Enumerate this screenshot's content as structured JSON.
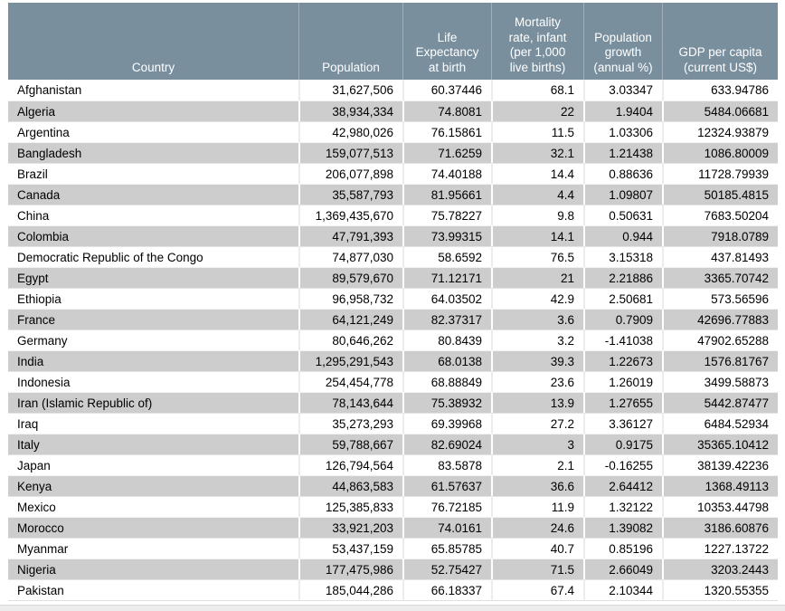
{
  "table": {
    "columns": [
      {
        "key": "country",
        "label": "Country"
      },
      {
        "key": "population",
        "label": "Population"
      },
      {
        "key": "life-expectancy",
        "label": "Life\nExpectancy\nat birth"
      },
      {
        "key": "mortality",
        "label": "Mortality\nrate, infant\n(per 1,000\nlive births)"
      },
      {
        "key": "pop-growth",
        "label": "Population\ngrowth\n(annual %)"
      },
      {
        "key": "gdp-per-capita",
        "label": "GDP per capita\n(current US$)"
      }
    ],
    "rows": [
      [
        "Afghanistan",
        "31,627,506",
        "60.37446",
        "68.1",
        "3.03347",
        "633.94786"
      ],
      [
        "Algeria",
        "38,934,334",
        "74.8081",
        "22",
        "1.9404",
        "5484.06681"
      ],
      [
        "Argentina",
        "42,980,026",
        "76.15861",
        "11.5",
        "1.03306",
        "12324.93879"
      ],
      [
        "Bangladesh",
        "159,077,513",
        "71.6259",
        "32.1",
        "1.21438",
        "1086.80009"
      ],
      [
        "Brazil",
        "206,077,898",
        "74.40188",
        "14.4",
        "0.88636",
        "11728.79939"
      ],
      [
        "Canada",
        "35,587,793",
        "81.95661",
        "4.4",
        "1.09807",
        "50185.4815"
      ],
      [
        "China",
        "1,369,435,670",
        "75.78227",
        "9.8",
        "0.50631",
        "7683.50204"
      ],
      [
        "Colombia",
        "47,791,393",
        "73.99315",
        "14.1",
        "0.944",
        "7918.0789"
      ],
      [
        "Democratic Republic of the Congo",
        "74,877,030",
        "58.6592",
        "76.5",
        "3.15318",
        "437.81493"
      ],
      [
        "Egypt",
        "89,579,670",
        "71.12171",
        "21",
        "2.21886",
        "3365.70742"
      ],
      [
        "Ethiopia",
        "96,958,732",
        "64.03502",
        "42.9",
        "2.50681",
        "573.56596"
      ],
      [
        "France",
        "64,121,249",
        "82.37317",
        "3.6",
        "0.7909",
        "42696.77883"
      ],
      [
        "Germany",
        "80,646,262",
        "80.8439",
        "3.2",
        "-1.41038",
        "47902.65288"
      ],
      [
        "India",
        "1,295,291,543",
        "68.0138",
        "39.3",
        "1.22673",
        "1576.81767"
      ],
      [
        "Indonesia",
        "254,454,778",
        "68.88849",
        "23.6",
        "1.26019",
        "3499.58873"
      ],
      [
        "Iran (Islamic Republic of)",
        "78,143,644",
        "75.38932",
        "13.9",
        "1.27655",
        "5442.87477"
      ],
      [
        "Iraq",
        "35,273,293",
        "69.39968",
        "27.2",
        "3.36127",
        "6484.52934"
      ],
      [
        "Italy",
        "59,788,667",
        "82.69024",
        "3",
        "0.9175",
        "35365.10412"
      ],
      [
        "Japan",
        "126,794,564",
        "83.5878",
        "2.1",
        "-0.16255",
        "38139.42236"
      ],
      [
        "Kenya",
        "44,863,583",
        "61.57637",
        "36.6",
        "2.64412",
        "1368.49113"
      ],
      [
        "Mexico",
        "125,385,833",
        "76.72185",
        "11.9",
        "1.32122",
        "10353.44798"
      ],
      [
        "Morocco",
        "33,921,203",
        "74.0161",
        "24.6",
        "1.39082",
        "3186.60876"
      ],
      [
        "Myanmar",
        "53,437,159",
        "65.85785",
        "40.7",
        "0.85196",
        "1227.13722"
      ],
      [
        "Nigeria",
        "177,475,986",
        "52.75427",
        "71.5",
        "2.66049",
        "3203.2443"
      ],
      [
        "Pakistan",
        "185,044,286",
        "66.18337",
        "67.4",
        "2.10344",
        "1320.55355"
      ]
    ],
    "colors": {
      "header_bg": "#7A8F9E",
      "header_text": "#FFFFFF",
      "row_bg": "#FFFFFF",
      "row_alt_bg": "#CDCDCD",
      "bottom_bar": "#ECECEC"
    }
  }
}
